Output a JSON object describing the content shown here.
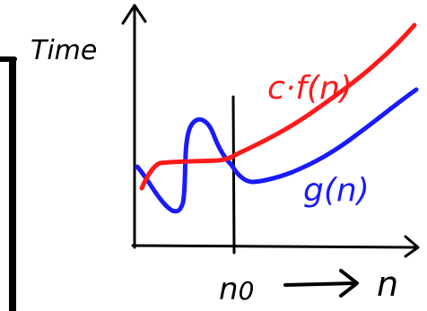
{
  "diagram": {
    "ylabel": "Time",
    "xlabel": "n",
    "threshold_label": "n",
    "threshold_subscript": "0",
    "upper_curve_label": "c·f(n)",
    "lower_curve_label": "g(n)"
  },
  "colors": {
    "upper_curve": "#ff1a1a",
    "lower_curve": "#1a1aff",
    "ink": "#000000",
    "background": "#ffffff"
  }
}
